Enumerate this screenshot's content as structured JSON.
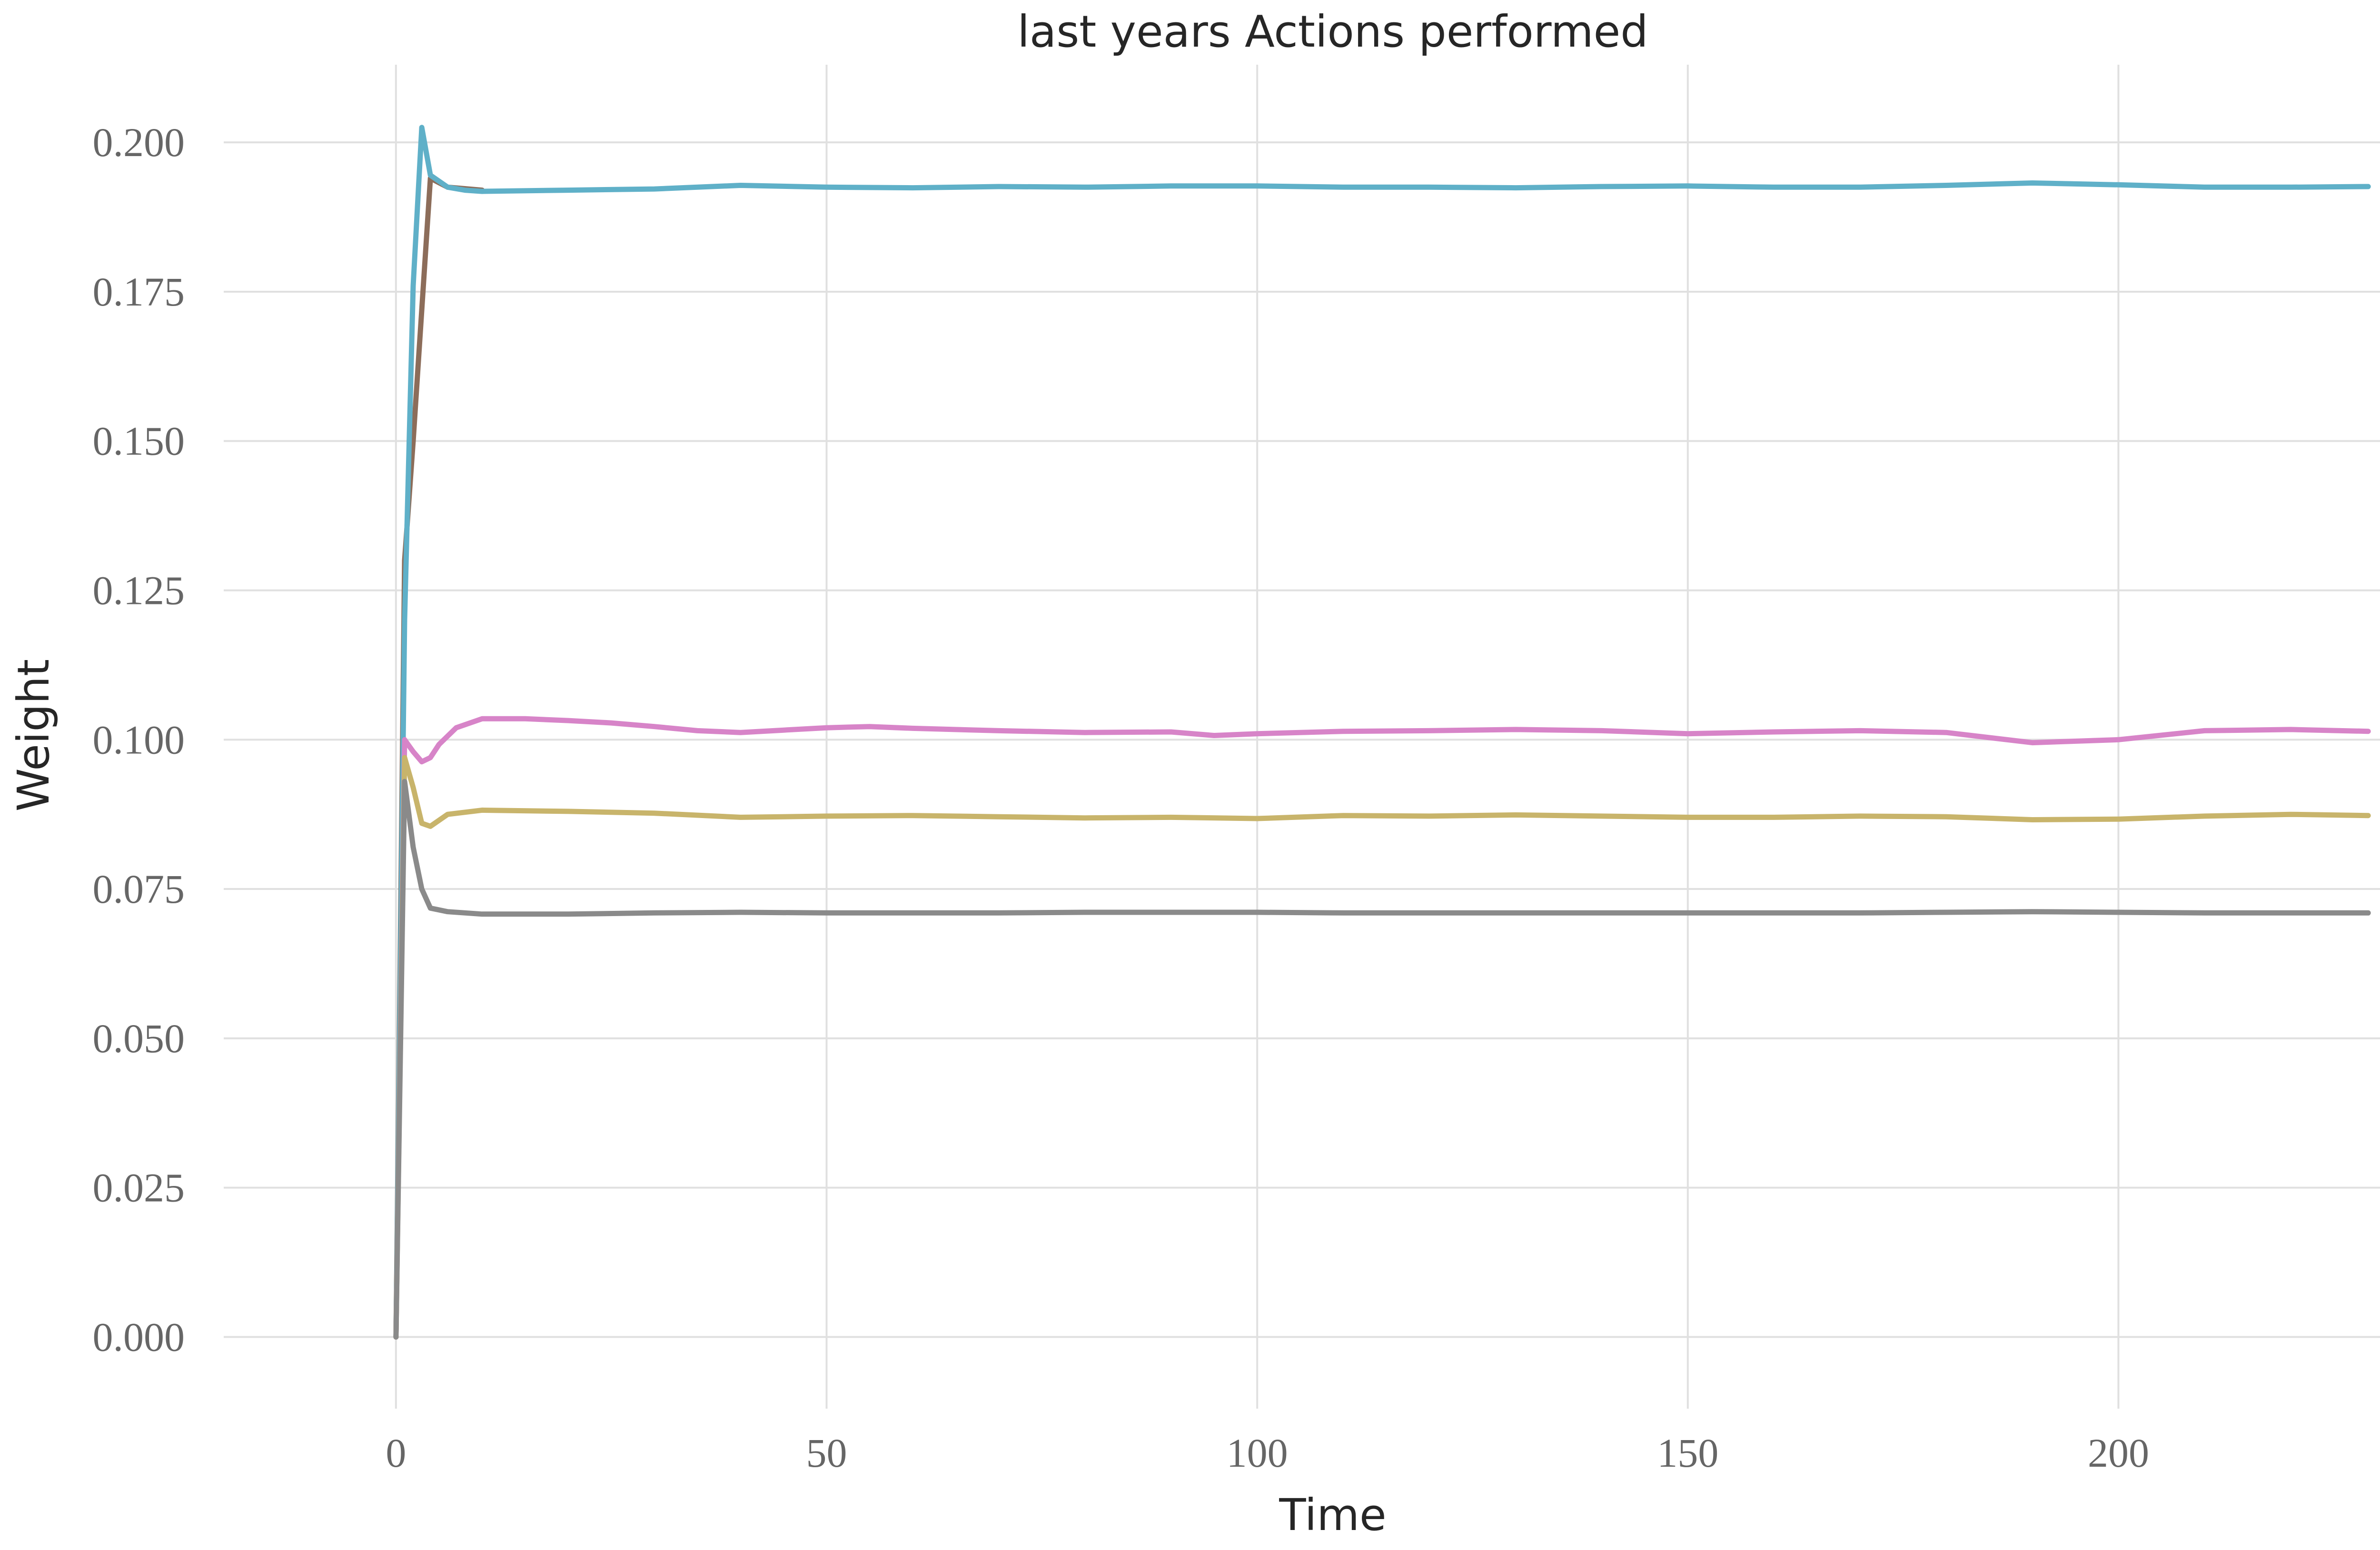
{
  "chart_data": {
    "type": "line",
    "title": "last years Actions performed",
    "xlabel": "Time",
    "ylabel": "Weight",
    "xlim": [
      -20,
      238
    ],
    "ylim": [
      -0.012,
      0.213
    ],
    "xticks": [
      0,
      50,
      100,
      150,
      200
    ],
    "xtick_labels": [
      "0",
      "50",
      "100",
      "150",
      "200"
    ],
    "yticks": [
      0.0,
      0.025,
      0.05,
      0.075,
      0.1,
      0.125,
      0.15,
      0.175,
      0.2
    ],
    "ytick_labels": [
      "0.000",
      "0.025",
      "0.050",
      "0.075",
      "0.100",
      "0.125",
      "0.150",
      "0.175",
      "0.200"
    ],
    "grid": true,
    "legend": "none",
    "series": [
      {
        "color": "#8c6d5a",
        "points": [
          [
            0,
            0.0
          ],
          [
            1,
            0.13
          ],
          [
            2,
            0.15
          ],
          [
            3,
            0.172
          ],
          [
            4,
            0.194
          ],
          [
            6,
            0.1925
          ],
          [
            10,
            0.192
          ]
        ]
      },
      {
        "color": "#5fb0c8",
        "points": [
          [
            0,
            0.0
          ],
          [
            1,
            0.12
          ],
          [
            2,
            0.176
          ],
          [
            3,
            0.2025
          ],
          [
            4,
            0.1945
          ],
          [
            6,
            0.1925
          ],
          [
            8,
            0.192
          ],
          [
            10,
            0.1918
          ],
          [
            20,
            0.192
          ],
          [
            30,
            0.1922
          ],
          [
            40,
            0.1928
          ],
          [
            50,
            0.1925
          ],
          [
            60,
            0.1924
          ],
          [
            70,
            0.1926
          ],
          [
            80,
            0.1925
          ],
          [
            90,
            0.1927
          ],
          [
            100,
            0.1927
          ],
          [
            110,
            0.1925
          ],
          [
            120,
            0.1925
          ],
          [
            130,
            0.1924
          ],
          [
            140,
            0.1926
          ],
          [
            150,
            0.1927
          ],
          [
            160,
            0.1925
          ],
          [
            170,
            0.1925
          ],
          [
            180,
            0.1928
          ],
          [
            190,
            0.1932
          ],
          [
            200,
            0.1929
          ],
          [
            210,
            0.1925
          ],
          [
            220,
            0.1925
          ],
          [
            229,
            0.1926
          ]
        ]
      },
      {
        "color": "#d784c8",
        "points": [
          [
            0,
            0.0
          ],
          [
            1,
            0.1
          ],
          [
            2,
            0.098
          ],
          [
            3,
            0.0963
          ],
          [
            4,
            0.097
          ],
          [
            5,
            0.0992
          ],
          [
            7,
            0.102
          ],
          [
            10,
            0.1035
          ],
          [
            15,
            0.1035
          ],
          [
            20,
            0.1032
          ],
          [
            25,
            0.1028
          ],
          [
            30,
            0.1022
          ],
          [
            35,
            0.1015
          ],
          [
            40,
            0.1012
          ],
          [
            45,
            0.1016
          ],
          [
            50,
            0.102
          ],
          [
            55,
            0.1022
          ],
          [
            60,
            0.1019
          ],
          [
            70,
            0.1015
          ],
          [
            80,
            0.1012
          ],
          [
            90,
            0.1013
          ],
          [
            95,
            0.1007
          ],
          [
            100,
            0.101
          ],
          [
            110,
            0.1014
          ],
          [
            120,
            0.1015
          ],
          [
            130,
            0.1017
          ],
          [
            140,
            0.1015
          ],
          [
            150,
            0.101
          ],
          [
            160,
            0.1013
          ],
          [
            170,
            0.1015
          ],
          [
            180,
            0.1012
          ],
          [
            190,
            0.0995
          ],
          [
            200,
            0.1
          ],
          [
            210,
            0.1015
          ],
          [
            220,
            0.1017
          ],
          [
            229,
            0.1014
          ]
        ]
      },
      {
        "color": "#c8b46b",
        "points": [
          [
            0,
            0.0
          ],
          [
            1,
            0.097
          ],
          [
            2,
            0.092
          ],
          [
            3,
            0.086
          ],
          [
            4,
            0.0855
          ],
          [
            6,
            0.0875
          ],
          [
            10,
            0.0882
          ],
          [
            20,
            0.088
          ],
          [
            30,
            0.0877
          ],
          [
            40,
            0.087
          ],
          [
            50,
            0.0872
          ],
          [
            60,
            0.0873
          ],
          [
            70,
            0.0871
          ],
          [
            80,
            0.0869
          ],
          [
            90,
            0.087
          ],
          [
            100,
            0.0868
          ],
          [
            110,
            0.0873
          ],
          [
            120,
            0.0872
          ],
          [
            130,
            0.0874
          ],
          [
            140,
            0.0872
          ],
          [
            150,
            0.087
          ],
          [
            160,
            0.087
          ],
          [
            170,
            0.0872
          ],
          [
            180,
            0.0871
          ],
          [
            190,
            0.0866
          ],
          [
            200,
            0.0867
          ],
          [
            210,
            0.0872
          ],
          [
            220,
            0.0875
          ],
          [
            229,
            0.0873
          ]
        ]
      },
      {
        "color": "#8a8a8a",
        "points": [
          [
            0,
            0.0
          ],
          [
            1,
            0.093
          ],
          [
            2,
            0.082
          ],
          [
            3,
            0.075
          ],
          [
            4,
            0.0718
          ],
          [
            6,
            0.0712
          ],
          [
            10,
            0.0708
          ],
          [
            20,
            0.0708
          ],
          [
            30,
            0.071
          ],
          [
            40,
            0.0711
          ],
          [
            50,
            0.071
          ],
          [
            60,
            0.071
          ],
          [
            70,
            0.071
          ],
          [
            80,
            0.0711
          ],
          [
            90,
            0.0711
          ],
          [
            100,
            0.0711
          ],
          [
            110,
            0.071
          ],
          [
            120,
            0.071
          ],
          [
            130,
            0.071
          ],
          [
            140,
            0.071
          ],
          [
            150,
            0.071
          ],
          [
            160,
            0.071
          ],
          [
            170,
            0.071
          ],
          [
            180,
            0.0711
          ],
          [
            190,
            0.0712
          ],
          [
            200,
            0.0711
          ],
          [
            210,
            0.071
          ],
          [
            220,
            0.071
          ],
          [
            229,
            0.071
          ]
        ]
      }
    ]
  }
}
